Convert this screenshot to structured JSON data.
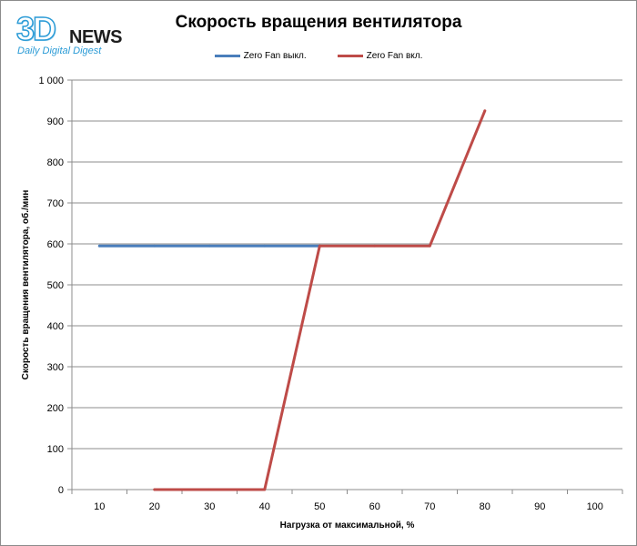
{
  "logo": {
    "brand_3d": "3D",
    "brand_news": "NEWS",
    "tagline": "Daily Digital Digest"
  },
  "chart_data": {
    "type": "line",
    "title": "Скорость вращения вентилятора",
    "xlabel": "Нагрузка от максимальной, %",
    "ylabel": "Скорость вращения вентилятора, об./мин",
    "categories": [
      10,
      20,
      30,
      40,
      50,
      60,
      70,
      80,
      90,
      100
    ],
    "ylim": [
      0,
      1000
    ],
    "y_ticks": [
      0,
      100,
      200,
      300,
      400,
      500,
      600,
      700,
      800,
      900,
      1000
    ],
    "y_tick_labels": [
      "0",
      "100",
      "200",
      "300",
      "400",
      "500",
      "600",
      "700",
      "800",
      "900",
      "1 000"
    ],
    "grid": "horizontal",
    "legend_position": "top",
    "series": [
      {
        "name": "Zero Fan выкл.",
        "color": "#4a7ebb",
        "x": [
          10,
          20,
          30,
          40,
          50
        ],
        "values": [
          595,
          595,
          595,
          595,
          595
        ]
      },
      {
        "name": "Zero Fan вкл.",
        "color": "#be4b48",
        "x": [
          20,
          30,
          40,
          50,
          60,
          70,
          80
        ],
        "values": [
          0,
          0,
          0,
          595,
          595,
          595,
          925
        ]
      }
    ]
  }
}
